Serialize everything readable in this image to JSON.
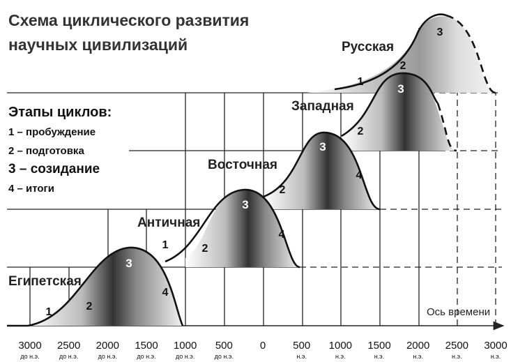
{
  "title": [
    "Схема циклического развития",
    "научных цивилизаций"
  ],
  "legend": {
    "title": "Этапы циклов:",
    "items": [
      "1 – пробуждение",
      "2 – подготовка",
      "3 – созидание",
      "4 – итоги"
    ]
  },
  "civilizations": [
    {
      "name": "Египетская",
      "stages": [
        "1",
        "2",
        "3",
        "4"
      ]
    },
    {
      "name": "Античная",
      "stages": [
        "1",
        "2",
        "3",
        "4"
      ]
    },
    {
      "name": "Восточная",
      "stages": [
        "2",
        "3",
        "4"
      ]
    },
    {
      "name": "Западная",
      "stages": [
        "2",
        "3"
      ]
    },
    {
      "name": "Русская",
      "stages": [
        "1",
        "2",
        "3"
      ]
    }
  ],
  "axis": {
    "label": "Ось времени",
    "ticks": [
      {
        "year": "3000",
        "era": "до н.э."
      },
      {
        "year": "2500",
        "era": "до н.э."
      },
      {
        "year": "2000",
        "era": "до н.э."
      },
      {
        "year": "1500",
        "era": "до н.э."
      },
      {
        "year": "1000",
        "era": "до н.э."
      },
      {
        "year": "500",
        "era": "до н.э."
      },
      {
        "year": "0"
      },
      {
        "year": "500",
        "era": "н.э."
      },
      {
        "year": "1000",
        "era": "н.э."
      },
      {
        "year": "1500",
        "era": "н.э."
      },
      {
        "year": "2000",
        "era": "н.э."
      },
      {
        "year": "2500",
        "era": "н.э."
      },
      {
        "year": "3000",
        "era": "н.э."
      }
    ]
  }
}
